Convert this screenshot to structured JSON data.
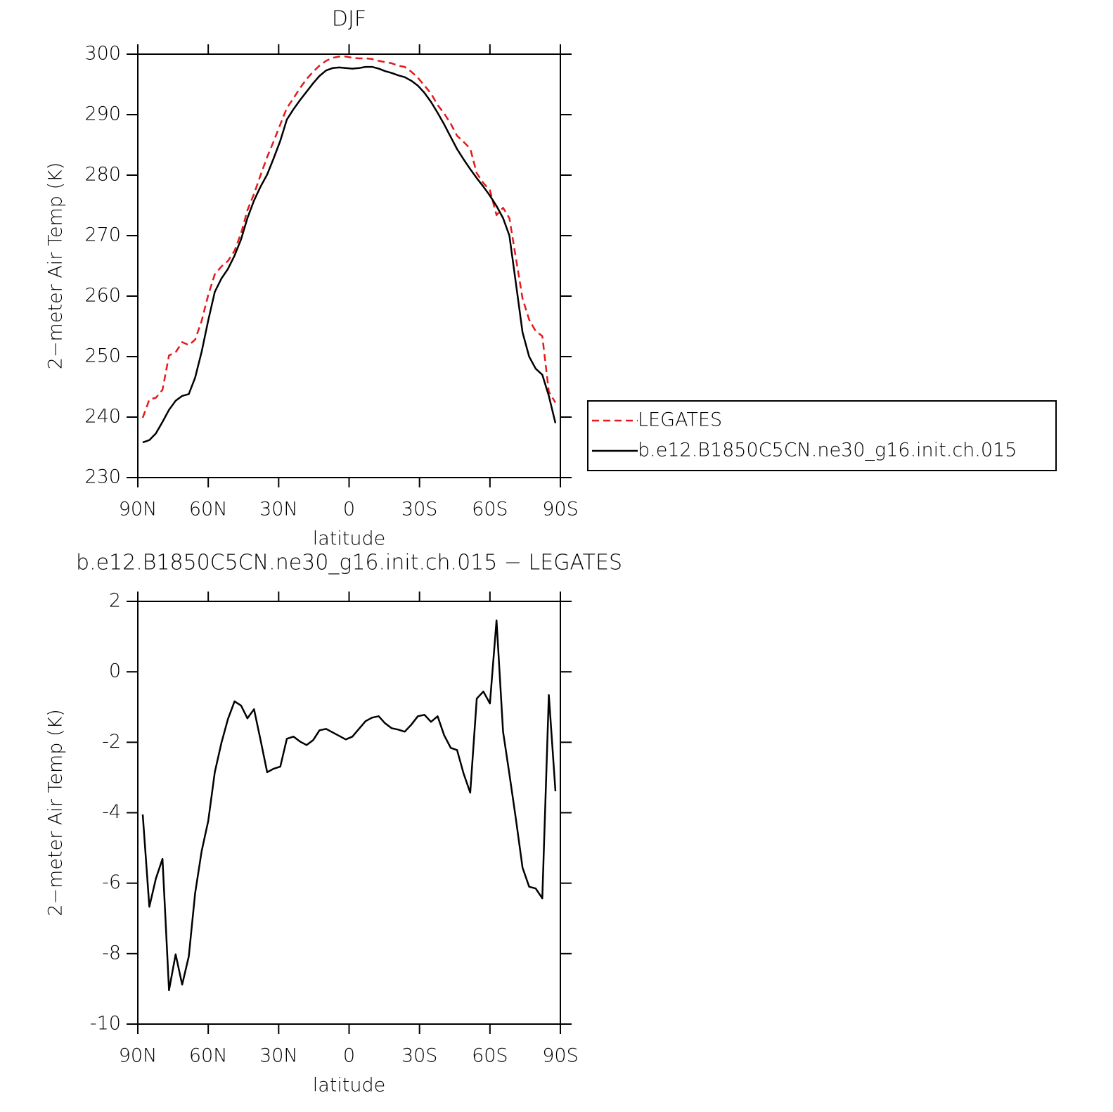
{
  "chart_data": [
    {
      "type": "line",
      "title": "DJF",
      "xlabel": "latitude",
      "ylabel": "2−meter Air Temp (K)",
      "x": [
        87.9,
        85.1,
        82.3,
        79.5,
        76.7,
        73.9,
        71.1,
        68.3,
        65.6,
        62.8,
        60.0,
        57.2,
        54.4,
        51.6,
        48.8,
        46.0,
        43.3,
        40.5,
        37.7,
        34.9,
        32.1,
        29.3,
        26.5,
        23.7,
        20.9,
        18.1,
        15.3,
        12.6,
        9.8,
        7.0,
        4.2,
        1.4,
        -1.4,
        -4.2,
        -7.0,
        -9.8,
        -12.6,
        -15.3,
        -18.1,
        -20.9,
        -23.7,
        -26.5,
        -29.3,
        -32.1,
        -34.9,
        -37.7,
        -40.5,
        -43.3,
        -46.0,
        -48.8,
        -51.6,
        -54.4,
        -57.2,
        -60.0,
        -62.8,
        -65.6,
        -68.3,
        -71.1,
        -73.9,
        -76.7,
        -79.5,
        -82.3,
        -85.1,
        -87.9
      ],
      "series": [
        {
          "name": "LEGATES",
          "color": "#e41a1c",
          "line_style": "dashed",
          "values": [
            239.9,
            242.9,
            243.2,
            244.5,
            250.2,
            250.7,
            252.4,
            251.9,
            252.8,
            255.9,
            260.2,
            263.6,
            264.9,
            265.8,
            267.5,
            270.4,
            274.2,
            276.9,
            280.0,
            283.0,
            285.6,
            288.4,
            291.1,
            292.7,
            294.4,
            295.9,
            297.1,
            298.1,
            298.9,
            299.4,
            299.6,
            299.6,
            299.4,
            299.3,
            299.3,
            299.2,
            298.9,
            298.7,
            298.5,
            298.1,
            297.9,
            297.1,
            296.1,
            294.8,
            293.5,
            291.6,
            290.2,
            288.5,
            286.5,
            285.5,
            284.4,
            280.3,
            278.7,
            277.5,
            273.4,
            274.6,
            272.9,
            266.2,
            259.6,
            256.1,
            254.2,
            253.4,
            244.2,
            242.4
          ]
        },
        {
          "name": "b.e12.B1850C5CN.ne30_g16.init.ch.015",
          "color": "#000000",
          "line_style": "solid",
          "values": [
            235.8,
            236.2,
            237.3,
            239.2,
            241.2,
            242.7,
            243.5,
            243.8,
            246.5,
            250.8,
            256.0,
            260.7,
            262.9,
            264.5,
            266.7,
            269.4,
            272.9,
            275.8,
            278.1,
            280.1,
            282.8,
            285.7,
            289.2,
            290.9,
            292.4,
            293.8,
            295.2,
            296.4,
            297.3,
            297.7,
            297.8,
            297.7,
            297.6,
            297.7,
            297.9,
            297.9,
            297.6,
            297.2,
            296.9,
            296.5,
            296.2,
            295.6,
            294.8,
            293.6,
            292.1,
            290.3,
            288.4,
            286.3,
            284.3,
            282.6,
            281.0,
            279.5,
            278.1,
            276.6,
            274.9,
            272.9,
            270.0,
            262.0,
            254.0,
            250.0,
            248.0,
            247.0,
            243.5,
            239.0
          ]
        }
      ],
      "xlim": [
        90,
        -90
      ],
      "xticks": [
        {
          "value": 90,
          "label": "90N"
        },
        {
          "value": 60,
          "label": "60N"
        },
        {
          "value": 30,
          "label": "30N"
        },
        0,
        {
          "value": -30,
          "label": "30S"
        },
        {
          "value": -60,
          "label": "60S"
        },
        {
          "value": -90,
          "label": "90S"
        }
      ],
      "ylim": [
        230,
        300
      ],
      "yticks": [
        230,
        240,
        250,
        260,
        270,
        280,
        290,
        300
      ],
      "legend": "right"
    },
    {
      "type": "line",
      "title": "b.e12.B1850C5CN.ne30_g16.init.ch.015 − LEGATES",
      "xlabel": "latitude",
      "ylabel": "2−meter Air Temp (K)",
      "x": [
        87.9,
        85.1,
        82.3,
        79.5,
        76.7,
        73.9,
        71.1,
        68.3,
        65.6,
        62.8,
        60.0,
        57.2,
        54.4,
        51.6,
        48.8,
        46.0,
        43.3,
        40.5,
        37.7,
        34.9,
        32.1,
        29.3,
        26.5,
        23.7,
        20.9,
        18.1,
        15.3,
        12.6,
        9.8,
        7.0,
        4.2,
        1.4,
        -1.4,
        -4.2,
        -7.0,
        -9.8,
        -12.6,
        -15.3,
        -18.1,
        -20.9,
        -23.7,
        -26.5,
        -29.3,
        -32.1,
        -34.9,
        -37.7,
        -40.5,
        -43.3,
        -46.0,
        -48.8,
        -51.6,
        -54.4,
        -57.2,
        -60.0,
        -62.8,
        -65.6,
        -68.3,
        -71.1,
        -73.9,
        -76.7,
        -79.5,
        -82.3,
        -85.1,
        -87.9
      ],
      "series": [
        {
          "color": "#000000",
          "line_style": "solid",
          "values": [
            -4.05,
            -6.67,
            -5.87,
            -5.31,
            -9.04,
            -8.02,
            -8.88,
            -8.08,
            -6.29,
            -5.09,
            -4.23,
            -2.85,
            -2.02,
            -1.34,
            -0.84,
            -0.96,
            -1.32,
            -1.06,
            -1.94,
            -2.85,
            -2.75,
            -2.69,
            -1.9,
            -1.84,
            -1.98,
            -2.08,
            -1.94,
            -1.66,
            -1.62,
            -1.72,
            -1.82,
            -1.92,
            -1.84,
            -1.62,
            -1.4,
            -1.3,
            -1.26,
            -1.46,
            -1.6,
            -1.64,
            -1.7,
            -1.5,
            -1.26,
            -1.22,
            -1.42,
            -1.26,
            -1.8,
            -2.16,
            -2.22,
            -2.89,
            -3.43,
            -0.76,
            -0.56,
            -0.9,
            1.46,
            -1.7,
            -2.9,
            -4.2,
            -5.56,
            -6.1,
            -6.15,
            -6.43,
            -0.66,
            -3.39
          ]
        }
      ],
      "xlim": [
        90,
        -90
      ],
      "xticks": [
        {
          "value": 90,
          "label": "90N"
        },
        {
          "value": 60,
          "label": "60N"
        },
        {
          "value": 30,
          "label": "30N"
        },
        0,
        {
          "value": -30,
          "label": "30S"
        },
        {
          "value": -60,
          "label": "60S"
        },
        {
          "value": -90,
          "label": "90S"
        }
      ],
      "ylim": [
        -10,
        2
      ],
      "yticks": [
        -10,
        -8,
        -6,
        -4,
        -2,
        0,
        2
      ]
    }
  ]
}
